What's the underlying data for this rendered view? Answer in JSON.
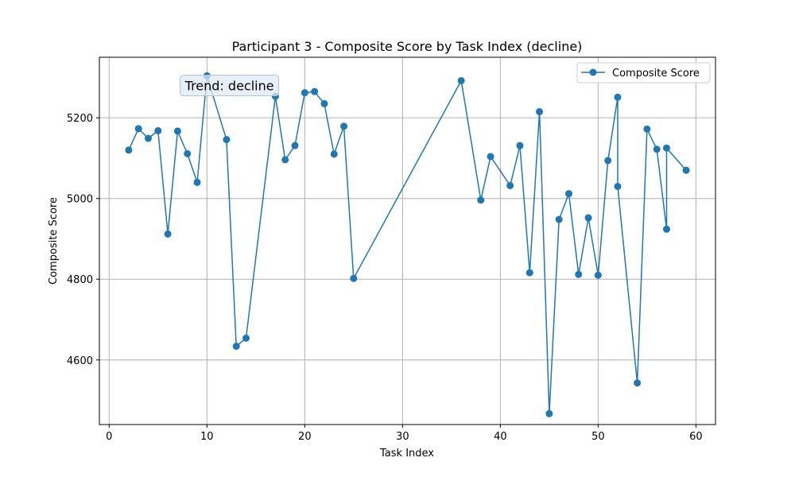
{
  "chart_data": {
    "type": "line",
    "title": "Participant 3 - Composite Score by Task Index (decline)",
    "xlabel": "Task Index",
    "ylabel": "Composite Score",
    "xlim": [
      -1,
      62
    ],
    "ylim": [
      4440,
      5350
    ],
    "xticks": [
      0,
      10,
      20,
      30,
      40,
      50,
      60
    ],
    "yticks": [
      4600,
      4800,
      5000,
      5200
    ],
    "grid": true,
    "legend_position": "top-right",
    "series_color": "#1f77b4",
    "annotation": {
      "text": "Trend: decline",
      "x": 12.3,
      "y": 5280
    },
    "series": [
      {
        "name": "Composite Score",
        "x": [
          2,
          3,
          4,
          5,
          6,
          7,
          8,
          9,
          10,
          12,
          13,
          14,
          17,
          18,
          19,
          20,
          21,
          22,
          23,
          24,
          25,
          36,
          38,
          39,
          41,
          42,
          43,
          44,
          45,
          46,
          47,
          48,
          49,
          50,
          51,
          52,
          52,
          54,
          55,
          56,
          57,
          57,
          59
        ],
        "y": [
          5120,
          5173,
          5149,
          5168,
          4912,
          5167,
          5111,
          5040,
          5304,
          5146,
          4634,
          4654,
          5253,
          5096,
          5131,
          5262,
          5265,
          5235,
          5110,
          5179,
          4802,
          5292,
          4996,
          5104,
          5032,
          5131,
          4816,
          5215,
          4467,
          4948,
          5012,
          4812,
          4952,
          4810,
          5094,
          5251,
          5030,
          4543,
          5172,
          5122,
          4924,
          5125,
          5070
        ]
      }
    ]
  }
}
